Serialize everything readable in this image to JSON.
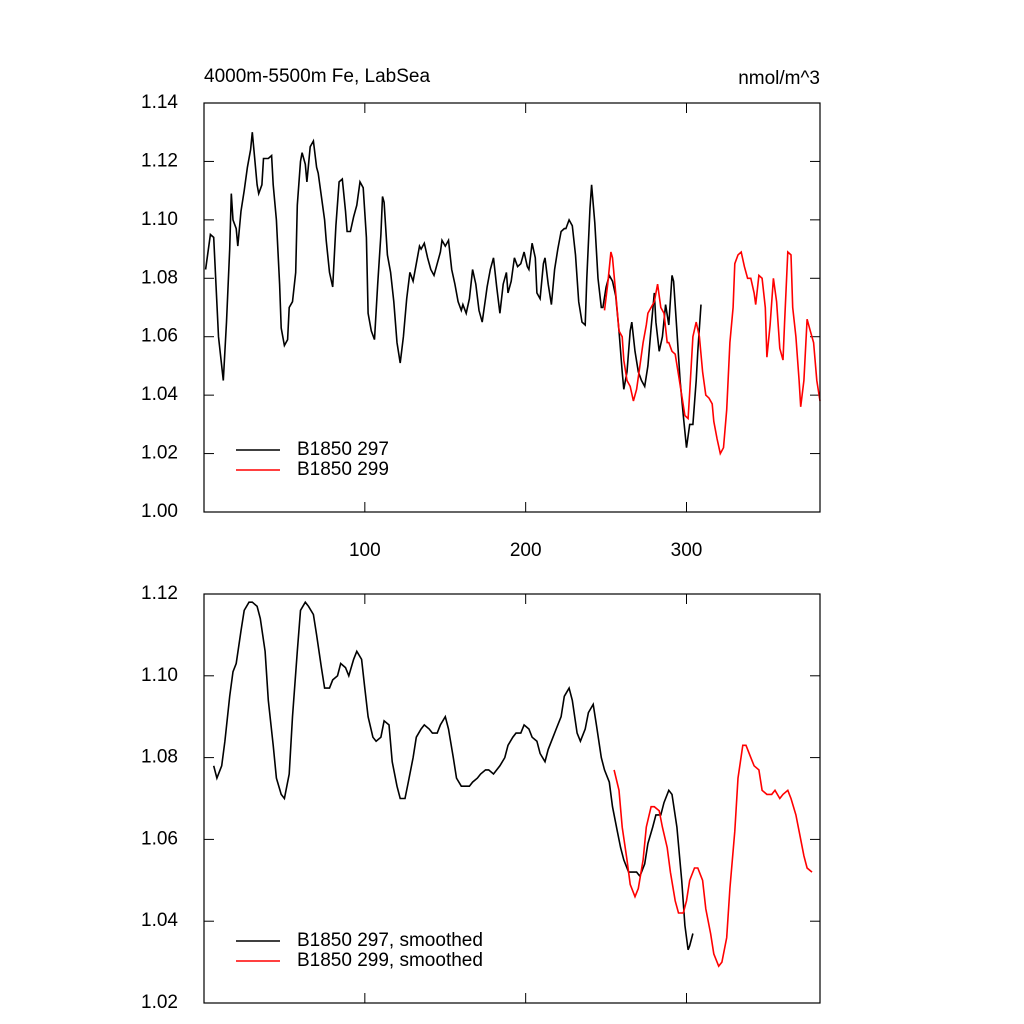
{
  "chart_data": [
    {
      "type": "line",
      "title": "4000m-5500m Fe, LabSea",
      "units": "nmol/m^3",
      "xlim": [
        0,
        383
      ],
      "xticks": [
        100,
        200,
        300
      ],
      "show_xtick_labels": true,
      "ylim": [
        1.0,
        1.14
      ],
      "yticks": [
        {
          "value": 1.0,
          "label": "1.00"
        },
        1.02,
        1.04,
        1.06,
        1.08,
        {
          "value": 1.1,
          "label": "1.10"
        },
        1.12,
        1.14
      ],
      "legend": "lower left",
      "series": [
        {
          "name": "B1850 297",
          "color": "#000000",
          "x": [
            1,
            4,
            6,
            9,
            12,
            14,
            16,
            17,
            18,
            20,
            21,
            23,
            25,
            27,
            29,
            30,
            31,
            33,
            34,
            36,
            37,
            40,
            42,
            43,
            45,
            47,
            48,
            50,
            52,
            53,
            55,
            57,
            58,
            60,
            61,
            63,
            64,
            66,
            68,
            70,
            71,
            73,
            75,
            76,
            78,
            80,
            82,
            84,
            86,
            88,
            89,
            91,
            93,
            95,
            97,
            99,
            101,
            102,
            104,
            106,
            108,
            110,
            111,
            112,
            114,
            116,
            118,
            120,
            122,
            124,
            126,
            128,
            130,
            132,
            134,
            135,
            137,
            139,
            141,
            143,
            145,
            147,
            148,
            150,
            152,
            154,
            156,
            158,
            160,
            161,
            163,
            165,
            167,
            169,
            171,
            173,
            175,
            176,
            178,
            180,
            182,
            184,
            186,
            188,
            189,
            191,
            193,
            195,
            197,
            199,
            201,
            202,
            204,
            206,
            207,
            209,
            211,
            212,
            214,
            216,
            218,
            220,
            222,
            224,
            225,
            227,
            229,
            231,
            233,
            235,
            237,
            238,
            240,
            241,
            243,
            245,
            247,
            248,
            250,
            252,
            254,
            256,
            258,
            260,
            261,
            263,
            265,
            266,
            268,
            270,
            272,
            274,
            276,
            278,
            280,
            281,
            283,
            285,
            287,
            289,
            291,
            292,
            294,
            296,
            298,
            300,
            302,
            304,
            306,
            307,
            309
          ],
          "values": [
            1.083,
            1.095,
            1.094,
            1.06,
            1.045,
            1.065,
            1.09,
            1.109,
            1.1,
            1.097,
            1.091,
            1.103,
            1.11,
            1.118,
            1.124,
            1.13,
            1.124,
            1.112,
            1.109,
            1.112,
            1.121,
            1.121,
            1.122,
            1.112,
            1.1,
            1.078,
            1.063,
            1.057,
            1.059,
            1.07,
            1.072,
            1.082,
            1.105,
            1.12,
            1.123,
            1.119,
            1.113,
            1.125,
            1.127,
            1.118,
            1.116,
            1.108,
            1.1,
            1.093,
            1.082,
            1.077,
            1.098,
            1.113,
            1.114,
            1.103,
            1.096,
            1.096,
            1.101,
            1.105,
            1.113,
            1.111,
            1.094,
            1.068,
            1.062,
            1.059,
            1.078,
            1.095,
            1.108,
            1.106,
            1.088,
            1.082,
            1.072,
            1.058,
            1.051,
            1.06,
            1.073,
            1.082,
            1.079,
            1.085,
            1.091,
            1.09,
            1.092,
            1.087,
            1.083,
            1.081,
            1.085,
            1.089,
            1.093,
            1.091,
            1.093,
            1.083,
            1.078,
            1.072,
            1.069,
            1.071,
            1.068,
            1.073,
            1.083,
            1.078,
            1.069,
            1.065,
            1.073,
            1.077,
            1.083,
            1.087,
            1.077,
            1.068,
            1.078,
            1.082,
            1.075,
            1.079,
            1.087,
            1.084,
            1.085,
            1.089,
            1.084,
            1.083,
            1.092,
            1.087,
            1.075,
            1.073,
            1.085,
            1.087,
            1.078,
            1.071,
            1.083,
            1.09,
            1.096,
            1.097,
            1.097,
            1.1,
            1.098,
            1.088,
            1.072,
            1.065,
            1.064,
            1.08,
            1.104,
            1.112,
            1.099,
            1.08,
            1.07,
            1.07,
            1.077,
            1.081,
            1.079,
            1.074,
            1.062,
            1.048,
            1.042,
            1.048,
            1.062,
            1.065,
            1.055,
            1.048,
            1.045,
            1.043,
            1.05,
            1.063,
            1.075,
            1.065,
            1.055,
            1.06,
            1.071,
            1.064,
            1.081,
            1.079,
            1.062,
            1.045,
            1.033,
            1.022,
            1.03,
            1.03,
            1.045,
            1.055,
            1.071
          ]
        },
        {
          "name": "B1850 299",
          "color": "#ff0000",
          "x": [
            249,
            251,
            253,
            254,
            256,
            258,
            260,
            261,
            263,
            265,
            267,
            269,
            271,
            273,
            275,
            276,
            278,
            280,
            282,
            284,
            286,
            288,
            289,
            291,
            293,
            295,
            297,
            299,
            301,
            302,
            304,
            306,
            308,
            310,
            312,
            314,
            316,
            317,
            319,
            321,
            323,
            325,
            327,
            329,
            330,
            332,
            334,
            336,
            338,
            340,
            342,
            343,
            345,
            347,
            349,
            350,
            352,
            354,
            356,
            358,
            360,
            361,
            363,
            365,
            366,
            368,
            370,
            371,
            373,
            375,
            377,
            379,
            381,
            383
          ],
          "values": [
            1.069,
            1.078,
            1.089,
            1.087,
            1.075,
            1.062,
            1.06,
            1.052,
            1.045,
            1.043,
            1.038,
            1.042,
            1.05,
            1.058,
            1.064,
            1.068,
            1.07,
            1.072,
            1.078,
            1.07,
            1.068,
            1.058,
            1.058,
            1.055,
            1.054,
            1.047,
            1.04,
            1.033,
            1.032,
            1.041,
            1.06,
            1.065,
            1.06,
            1.048,
            1.04,
            1.039,
            1.037,
            1.031,
            1.025,
            1.02,
            1.022,
            1.035,
            1.058,
            1.07,
            1.085,
            1.088,
            1.089,
            1.084,
            1.08,
            1.08,
            1.075,
            1.071,
            1.081,
            1.08,
            1.07,
            1.053,
            1.064,
            1.08,
            1.072,
            1.056,
            1.052,
            1.065,
            1.089,
            1.088,
            1.07,
            1.06,
            1.045,
            1.036,
            1.045,
            1.066,
            1.062,
            1.058,
            1.045,
            1.038
          ]
        }
      ]
    },
    {
      "type": "line",
      "xlim": [
        0,
        383
      ],
      "xticks": [
        100,
        200,
        300
      ],
      "show_xtick_labels": false,
      "ylim": [
        1.02,
        1.12
      ],
      "yticks": [
        1.02,
        1.04,
        1.06,
        1.08,
        {
          "value": 1.1,
          "label": "1.10"
        },
        1.12
      ],
      "legend": "lower left",
      "series": [
        {
          "name": "B1850 297, smoothed",
          "color": "#000000",
          "x": [
            6,
            8,
            11,
            13,
            16,
            18,
            20,
            23,
            25,
            28,
            30,
            33,
            35,
            38,
            40,
            43,
            45,
            48,
            50,
            53,
            55,
            58,
            60,
            63,
            65,
            68,
            70,
            73,
            75,
            78,
            80,
            83,
            85,
            88,
            90,
            93,
            95,
            98,
            100,
            102,
            105,
            107,
            110,
            112,
            115,
            117,
            120,
            122,
            125,
            127,
            130,
            132,
            135,
            137,
            140,
            142,
            145,
            147,
            150,
            152,
            155,
            157,
            160,
            162,
            165,
            167,
            170,
            172,
            175,
            177,
            180,
            182,
            184,
            187,
            189,
            192,
            194,
            197,
            199,
            202,
            204,
            207,
            209,
            212,
            214,
            217,
            219,
            222,
            224,
            227,
            229,
            232,
            234,
            237,
            239,
            242,
            244,
            247,
            249,
            252,
            254,
            257,
            259,
            261,
            264,
            266,
            269,
            271,
            274,
            276,
            279,
            281,
            284,
            286,
            289,
            291,
            294,
            297,
            299,
            301,
            302,
            304
          ],
          "values": [
            1.078,
            1.075,
            1.078,
            1.084,
            1.095,
            1.101,
            1.103,
            1.111,
            1.116,
            1.118,
            1.118,
            1.117,
            1.114,
            1.106,
            1.094,
            1.083,
            1.075,
            1.071,
            1.07,
            1.076,
            1.09,
            1.106,
            1.116,
            1.118,
            1.117,
            1.115,
            1.11,
            1.102,
            1.097,
            1.097,
            1.099,
            1.1,
            1.103,
            1.102,
            1.1,
            1.104,
            1.106,
            1.104,
            1.097,
            1.09,
            1.085,
            1.084,
            1.085,
            1.089,
            1.088,
            1.079,
            1.073,
            1.07,
            1.07,
            1.074,
            1.08,
            1.085,
            1.087,
            1.088,
            1.087,
            1.086,
            1.086,
            1.088,
            1.09,
            1.087,
            1.08,
            1.075,
            1.073,
            1.073,
            1.073,
            1.074,
            1.075,
            1.076,
            1.077,
            1.077,
            1.076,
            1.077,
            1.078,
            1.08,
            1.083,
            1.085,
            1.086,
            1.086,
            1.088,
            1.087,
            1.085,
            1.084,
            1.081,
            1.079,
            1.082,
            1.085,
            1.087,
            1.09,
            1.095,
            1.097,
            1.094,
            1.086,
            1.084,
            1.087,
            1.091,
            1.093,
            1.088,
            1.08,
            1.077,
            1.074,
            1.068,
            1.062,
            1.058,
            1.055,
            1.052,
            1.052,
            1.052,
            1.051,
            1.054,
            1.059,
            1.063,
            1.066,
            1.066,
            1.069,
            1.072,
            1.071,
            1.063,
            1.05,
            1.039,
            1.033,
            1.034,
            1.037
          ]
        },
        {
          "name": "B1850 299, smoothed",
          "color": "#ff0000",
          "x": [
            255,
            258,
            260,
            263,
            265,
            268,
            270,
            273,
            275,
            278,
            280,
            283,
            285,
            288,
            290,
            293,
            295,
            298,
            300,
            302,
            305,
            307,
            310,
            312,
            315,
            317,
            320,
            322,
            325,
            327,
            330,
            332,
            335,
            337,
            340,
            342,
            345,
            347,
            350,
            353,
            355,
            358,
            360,
            363,
            365,
            368,
            370,
            373,
            375,
            378
          ],
          "values": [
            1.077,
            1.072,
            1.063,
            1.055,
            1.049,
            1.046,
            1.048,
            1.055,
            1.063,
            1.068,
            1.068,
            1.067,
            1.063,
            1.058,
            1.052,
            1.045,
            1.042,
            1.042,
            1.045,
            1.05,
            1.053,
            1.053,
            1.05,
            1.043,
            1.037,
            1.032,
            1.029,
            1.03,
            1.036,
            1.048,
            1.062,
            1.075,
            1.083,
            1.083,
            1.08,
            1.078,
            1.077,
            1.072,
            1.071,
            1.071,
            1.072,
            1.07,
            1.071,
            1.072,
            1.07,
            1.066,
            1.062,
            1.056,
            1.053,
            1.052
          ]
        }
      ]
    }
  ]
}
